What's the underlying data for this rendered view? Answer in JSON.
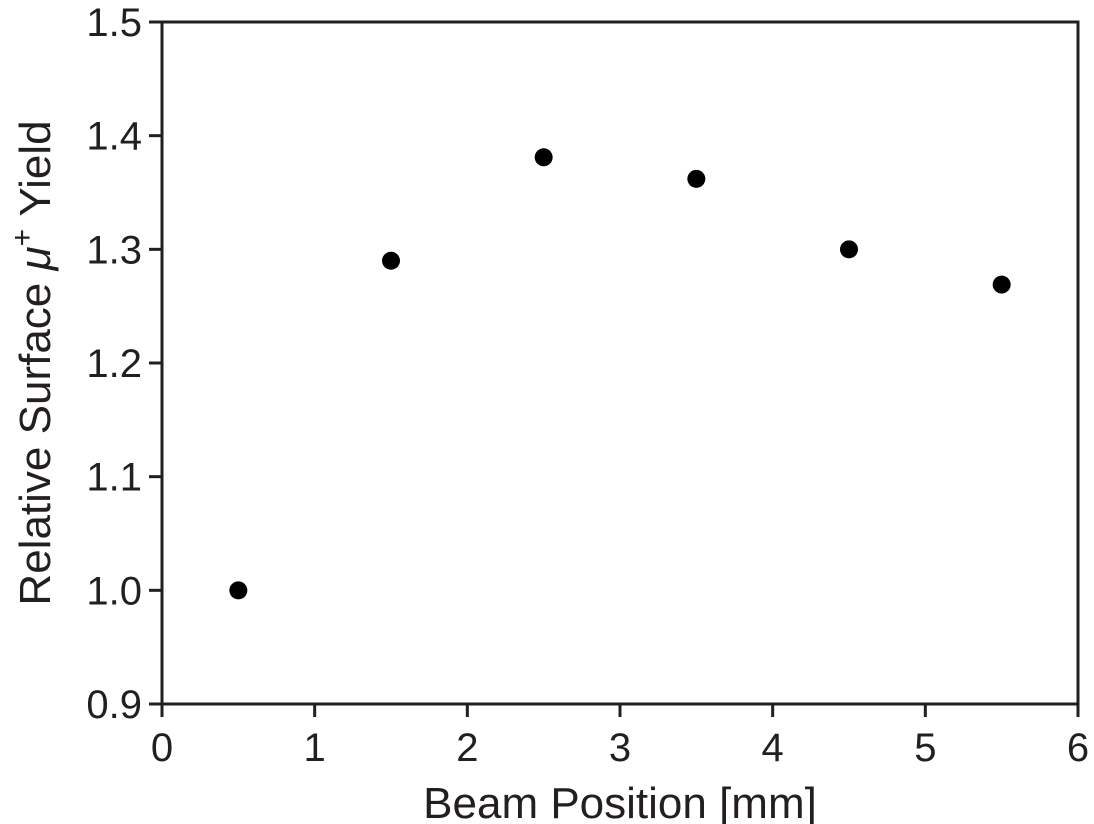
{
  "chart_data": {
    "type": "scatter",
    "xlabel": "Beam Position [mm]",
    "ylabel": {
      "before": "Relative Surface ",
      "symbol": "μ",
      "sup": "+",
      "after": " Yield"
    },
    "xlim": [
      0,
      6
    ],
    "ylim": [
      0.9,
      1.5
    ],
    "xticks": [
      0,
      1,
      2,
      3,
      4,
      5,
      6
    ],
    "xtick_labels": [
      "0",
      "1",
      "2",
      "3",
      "4",
      "5",
      "6"
    ],
    "yticks": [
      0.9,
      1.0,
      1.1,
      1.2,
      1.3,
      1.4,
      1.5
    ],
    "ytick_labels": [
      "0.9",
      "1.0",
      "1.1",
      "1.2",
      "1.3",
      "1.4",
      "1.5"
    ],
    "grid": false,
    "series": [
      {
        "color": "#000000",
        "marker": "circle",
        "x": [
          0.5,
          1.5,
          2.5,
          3.5,
          4.5,
          5.5
        ],
        "y": [
          1.0,
          1.29,
          1.381,
          1.362,
          1.3,
          1.269
        ]
      }
    ]
  }
}
